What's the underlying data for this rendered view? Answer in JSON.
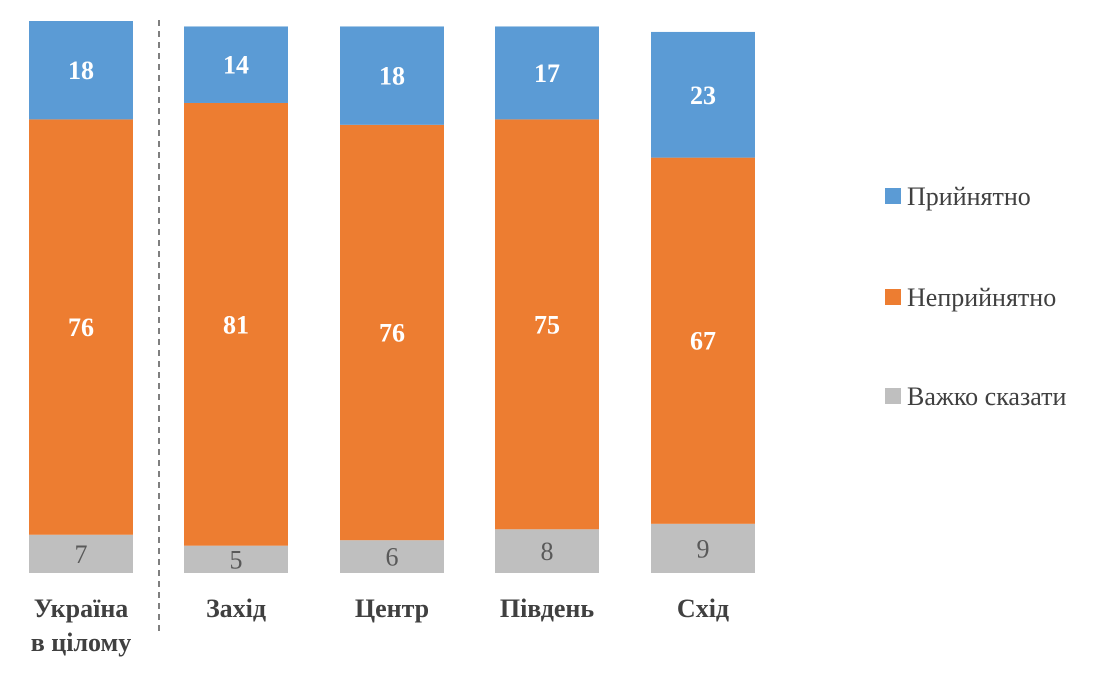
{
  "chart_data": {
    "type": "bar",
    "stacked": true,
    "normalized_percent": true,
    "title": "",
    "xlabel": "",
    "ylabel": "",
    "ylim": [
      0,
      101
    ],
    "categories": [
      "Україна в цілому",
      "Захід",
      "Центр",
      "Південь",
      "Схід"
    ],
    "category_lines": [
      [
        "Україна",
        "в цілому"
      ],
      [
        "Захід"
      ],
      [
        "Центр"
      ],
      [
        "Південь"
      ],
      [
        "Схід"
      ]
    ],
    "series": [
      {
        "name": "Важко сказати",
        "values": [
          7,
          5,
          6,
          8,
          9
        ],
        "color": "#bfbfbf"
      },
      {
        "name": "Неприйнятно",
        "values": [
          76,
          81,
          76,
          75,
          67
        ],
        "color": "#ed7d31"
      },
      {
        "name": "Прийнятно",
        "values": [
          18,
          14,
          18,
          17,
          23
        ],
        "color": "#5b9bd5"
      }
    ],
    "separator_after_category": 0,
    "legend": {
      "position": "right",
      "entries": [
        "Прийнятно",
        "Неприйнятно",
        "Важко сказати"
      ]
    },
    "grid": false
  }
}
